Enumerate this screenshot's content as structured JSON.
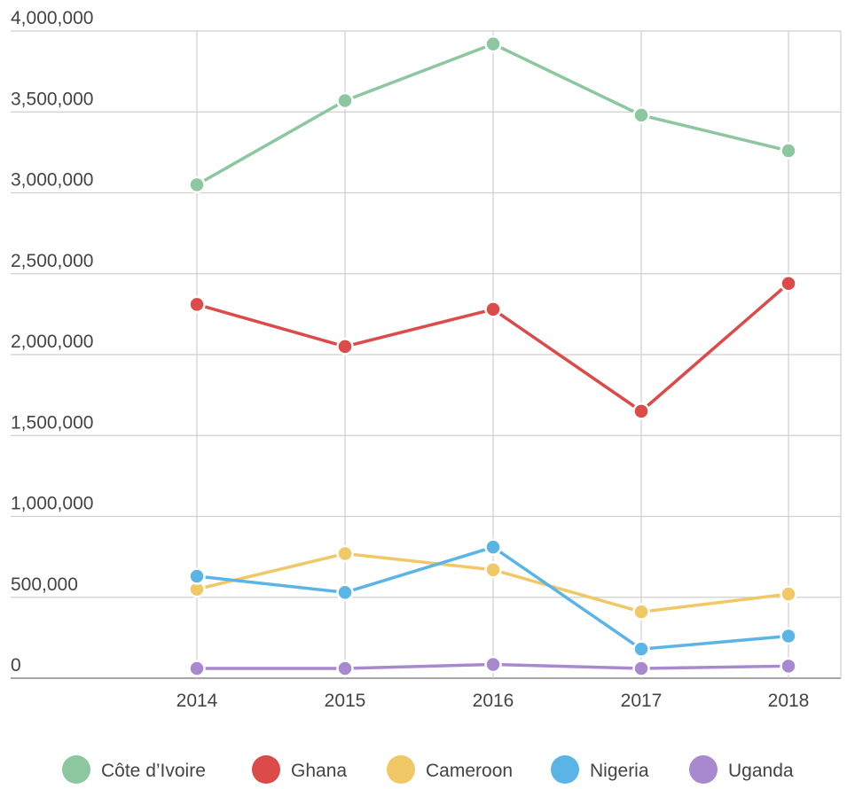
{
  "chart_data": {
    "type": "line",
    "title": "",
    "xlabel": "",
    "ylabel": "",
    "x": [
      "2014",
      "2015",
      "2016",
      "2017",
      "2018"
    ],
    "ylim": [
      0,
      4000000
    ],
    "y_ticks": [
      {
        "value": 0,
        "label": "0"
      },
      {
        "value": 500000,
        "label": "500,000"
      },
      {
        "value": 1000000,
        "label": "1,000,000"
      },
      {
        "value": 1500000,
        "label": "1,500,000"
      },
      {
        "value": 2000000,
        "label": "2,000,000"
      },
      {
        "value": 2500000,
        "label": "2,500,000"
      },
      {
        "value": 3000000,
        "label": "3,000,000"
      },
      {
        "value": 3500000,
        "label": "3,500,000"
      },
      {
        "value": 4000000,
        "label": "4,000,000"
      }
    ],
    "grid": true,
    "legend_position": "bottom",
    "series": [
      {
        "name": "Côte d’Ivoire",
        "color": "#8cc7a0",
        "values": [
          3050000,
          3570000,
          3920000,
          3480000,
          3260000
        ]
      },
      {
        "name": "Ghana",
        "color": "#dc4a4a",
        "values": [
          2310000,
          2050000,
          2280000,
          1650000,
          2440000
        ]
      },
      {
        "name": "Cameroon",
        "color": "#f0c866",
        "values": [
          550000,
          770000,
          670000,
          410000,
          520000
        ]
      },
      {
        "name": "Nigeria",
        "color": "#5ab5e6",
        "values": [
          630000,
          530000,
          810000,
          180000,
          260000
        ]
      },
      {
        "name": "Uganda",
        "color": "#a889cf",
        "values": [
          60000,
          60000,
          85000,
          60000,
          75000
        ]
      }
    ]
  }
}
